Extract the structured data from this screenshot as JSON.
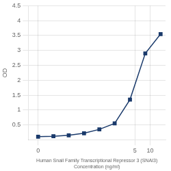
{
  "chart_data": {
    "type": "line",
    "xlabel": [
      "Human Snail Family Transcriptional Repressor 3 (SNAI3)",
      "Concentration (ng/ml)"
    ],
    "ylabel": "OD",
    "x": [
      0.0625,
      0.125,
      0.25,
      0.5,
      1,
      2,
      4,
      8,
      16
    ],
    "values": [
      0.105,
      0.12,
      0.15,
      0.22,
      0.35,
      0.55,
      1.35,
      2.9,
      3.55
    ],
    "color": "#1a3a6b",
    "marker": "square",
    "log": "x",
    "xlim": [
      0.04,
      20
    ],
    "xticks": [
      {
        "value": 0.0625,
        "label": "0"
      },
      5,
      10
    ],
    "ylim": [
      0,
      4.5
    ],
    "yticks": [
      0.5,
      1,
      1.5,
      2,
      2.5,
      3,
      3.5,
      4,
      4.5
    ],
    "grid": true
  }
}
